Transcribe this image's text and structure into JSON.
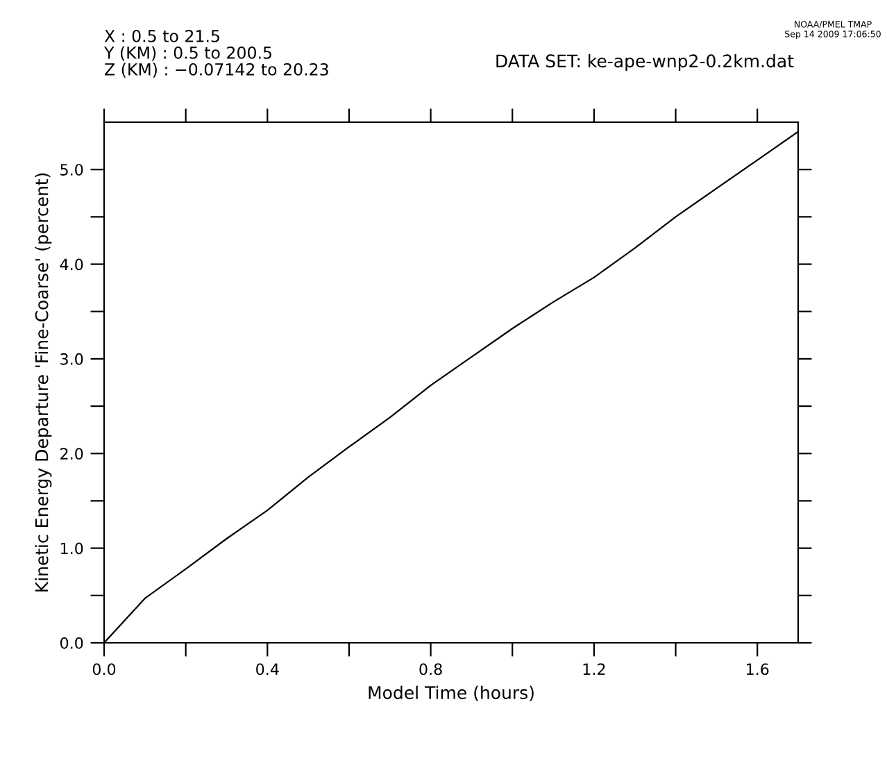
{
  "chart_data": {
    "type": "line",
    "xlabel": "Model Time (hours)",
    "ylabel": "Kinetic Energy Departure 'Fine-Coarse' (percent)",
    "annotations": [
      "X : 0.5 to 21.5",
      "Y (KM) : 0.5 to 200.5",
      "Z (KM) : −0.07142 to 20.23",
      "DATA SET: ke-ape-wnp2-0.2km.dat",
      "NOAA/PMEL TMAP",
      "Sep 14 2009 17:06:50"
    ],
    "series": [
      {
        "color": "#000000",
        "x": [
          0,
          0.1,
          0.2,
          0.3,
          0.4,
          0.5,
          0.6,
          0.7,
          0.8,
          0.9,
          1.0,
          1.1,
          1.2,
          1.3,
          1.4,
          1.5,
          1.6,
          1.7
        ],
        "values": [
          0,
          0.47,
          0.78,
          1.1,
          1.4,
          1.75,
          2.07,
          2.38,
          2.72,
          3.02,
          3.32,
          3.6,
          3.86,
          4.17,
          4.5,
          4.8,
          5.1,
          5.4
        ]
      }
    ],
    "xlim": [
      0,
      1.7
    ],
    "ylim": [
      0,
      5.5
    ],
    "xticks": [
      {
        "value": 0,
        "label": "0.0"
      },
      {
        "value": 0.2,
        "label": null
      },
      {
        "value": 0.4,
        "label": "0.4"
      },
      {
        "value": 0.6,
        "label": null
      },
      {
        "value": 0.8,
        "label": "0.8"
      },
      {
        "value": 1.0,
        "label": null
      },
      {
        "value": 1.2,
        "label": "1.2"
      },
      {
        "value": 1.4,
        "label": null
      },
      {
        "value": 1.6,
        "label": "1.6"
      }
    ],
    "yticks": [
      {
        "value": 0,
        "label": "0.0"
      },
      {
        "value": 0.5,
        "label": null
      },
      {
        "value": 1,
        "label": "1.0"
      },
      {
        "value": 1.5,
        "label": null
      },
      {
        "value": 2,
        "label": "2.0"
      },
      {
        "value": 2.5,
        "label": null
      },
      {
        "value": 3,
        "label": "3.0"
      },
      {
        "value": 3.5,
        "label": null
      },
      {
        "value": 4,
        "label": "4.0"
      },
      {
        "value": 4.5,
        "label": null
      },
      {
        "value": 5,
        "label": "5.0"
      }
    ],
    "grid": false,
    "legend": false,
    "marker": "none",
    "line_style": "solid"
  }
}
